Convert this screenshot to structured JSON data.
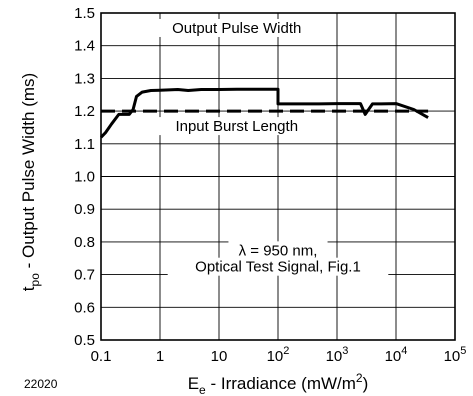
{
  "chart_data": {
    "type": "line",
    "title": "",
    "figure_id": "22020",
    "xscale": "log",
    "xlim": [
      0.1,
      100000
    ],
    "ylim": [
      0.5,
      1.5
    ],
    "grid": true,
    "x_ticks": [
      {
        "value": 0.1,
        "base": "0.1",
        "exp": ""
      },
      {
        "value": 1,
        "base": "1",
        "exp": ""
      },
      {
        "value": 10,
        "base": "10",
        "exp": ""
      },
      {
        "value": 100,
        "base": "10",
        "exp": "2"
      },
      {
        "value": 1000,
        "base": "10",
        "exp": "3"
      },
      {
        "value": 10000,
        "base": "10",
        "exp": "4"
      },
      {
        "value": 100000,
        "base": "10",
        "exp": "5"
      }
    ],
    "y_ticks": [
      {
        "value": 0.5,
        "label": "0.5"
      },
      {
        "value": 0.6,
        "label": "0.6"
      },
      {
        "value": 0.7,
        "label": "0.7"
      },
      {
        "value": 0.8,
        "label": "0.8"
      },
      {
        "value": 0.9,
        "label": "0.9"
      },
      {
        "value": 1.0,
        "label": "1.0"
      },
      {
        "value": 1.1,
        "label": "1.1"
      },
      {
        "value": 1.2,
        "label": "1.2"
      },
      {
        "value": 1.3,
        "label": "1.3"
      },
      {
        "value": 1.4,
        "label": "1.4"
      },
      {
        "value": 1.5,
        "label": "1.5"
      }
    ],
    "xlabel": {
      "main": "E",
      "sub": "e",
      "rest": " - Irradiance (mW/m",
      "sup": "2",
      "end": ")"
    },
    "ylabel": {
      "main": "t",
      "sub": "po",
      "rest": " - Output Pulse Width (ms)"
    },
    "series": [
      {
        "name": "Output Pulse Width",
        "style": "solid",
        "color": "#000000",
        "x": [
          0.1,
          0.12,
          0.15,
          0.2,
          0.3,
          0.35,
          0.4,
          0.5,
          0.7,
          1,
          2,
          3,
          5,
          10,
          20,
          50,
          100,
          100,
          200,
          500,
          1000,
          2000,
          2500,
          3000,
          4000,
          5000,
          10000,
          20000,
          35000
        ],
        "y": [
          1.12,
          1.135,
          1.16,
          1.19,
          1.19,
          1.205,
          1.245,
          1.258,
          1.263,
          1.264,
          1.266,
          1.263,
          1.266,
          1.266,
          1.267,
          1.267,
          1.267,
          1.222,
          1.222,
          1.222,
          1.223,
          1.223,
          1.223,
          1.19,
          1.222,
          1.222,
          1.223,
          1.205,
          1.18
        ]
      },
      {
        "name": "Input Burst Length",
        "style": "dashed",
        "color": "#000000",
        "x": [
          0.1,
          35000
        ],
        "y": [
          1.2,
          1.2
        ]
      }
    ],
    "annotations": [
      {
        "text": "Output Pulse Width",
        "x": 20,
        "y": 1.445
      },
      {
        "text": "Input Burst Length",
        "x": 20,
        "y": 1.145
      },
      {
        "text": "λ = 950 nm,",
        "x": 100,
        "y": 0.765
      },
      {
        "text": "Optical Test Signal, Fig.1",
        "x": 100,
        "y": 0.715
      }
    ]
  }
}
